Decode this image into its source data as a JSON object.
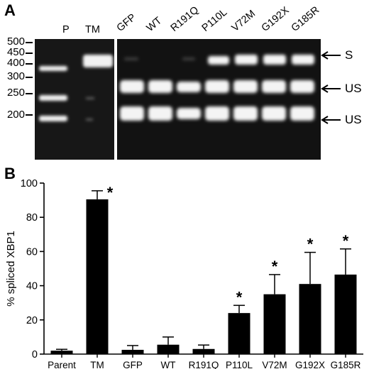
{
  "panel_a": {
    "letter": "A",
    "ladder": [
      "500",
      "450",
      "400",
      "300",
      "250",
      "200"
    ],
    "left_lanes": [
      "P",
      "TM"
    ],
    "right_lanes": [
      "GFP",
      "WT",
      "R191Q",
      "P110L",
      "V72M",
      "G192X",
      "G185R"
    ],
    "band_labels": [
      "S",
      "US",
      "US"
    ]
  },
  "panel_b": {
    "letter": "B",
    "ylabel": "% spliced XBP1",
    "significance_marker": "*"
  },
  "chart_data": {
    "type": "bar",
    "categories": [
      "Parent",
      "TM",
      "GFP",
      "WT",
      "R191Q",
      "P110L",
      "V72M",
      "G192X",
      "G185R"
    ],
    "values": [
      2,
      90.5,
      2.5,
      5.5,
      3,
      24,
      35,
      41,
      46.5
    ],
    "error_upper": [
      2.8,
      95.5,
      5,
      10,
      5.3,
      28.5,
      46.5,
      59.5,
      61.5
    ],
    "significant": [
      false,
      true,
      false,
      false,
      false,
      true,
      true,
      true,
      true
    ],
    "xlabel": "",
    "ylabel": "% spliced XBP1",
    "ylim": [
      0,
      100
    ],
    "yticks": [
      0,
      20,
      40,
      60,
      80,
      100
    ],
    "bar_color": "#000000"
  }
}
